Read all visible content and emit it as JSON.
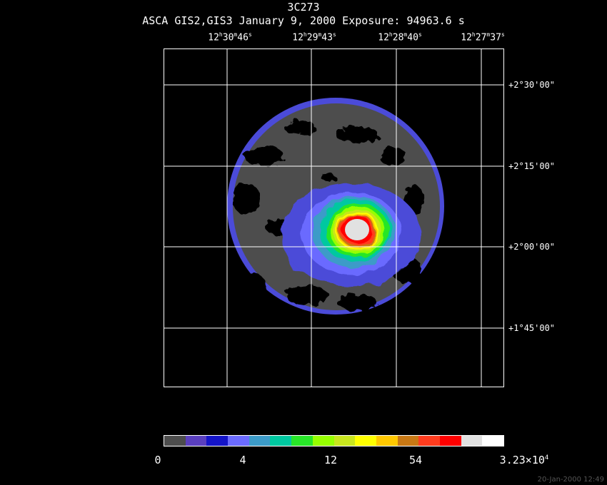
{
  "title": {
    "object": "3C273",
    "subtitle": "ASCA GIS2,GIS3 January 9, 2000 Exposure: 94963.6 s"
  },
  "ra_ticks": [
    {
      "h": "12",
      "m": "30",
      "s": "46"
    },
    {
      "h": "12",
      "m": "29",
      "s": "43"
    },
    {
      "h": "12",
      "m": "28",
      "s": "40"
    },
    {
      "h": "12",
      "m": "27",
      "s": "37"
    }
  ],
  "dec_ticks": [
    "+2°30'00\"",
    "+2°15'00\"",
    "+2°00'00\"",
    "+1°45'00\""
  ],
  "colorbar": {
    "colors": [
      "#4d4d4d",
      "#5a3fbf",
      "#1414c8",
      "#6b6bff",
      "#3c9bc8",
      "#00c8a0",
      "#28e628",
      "#96ff00",
      "#c8e61e",
      "#ffff00",
      "#ffc800",
      "#c87814",
      "#ff3c1e",
      "#ff0000",
      "#e1e1e1",
      "#ffffff"
    ],
    "labels": [
      {
        "text": "0"
      },
      {
        "text": "4"
      },
      {
        "text": "12"
      },
      {
        "text": "54"
      },
      {
        "mantissa": "3.23×10",
        "exp": "4"
      }
    ]
  },
  "timestamp": "20-Jan-2000 12:49"
}
